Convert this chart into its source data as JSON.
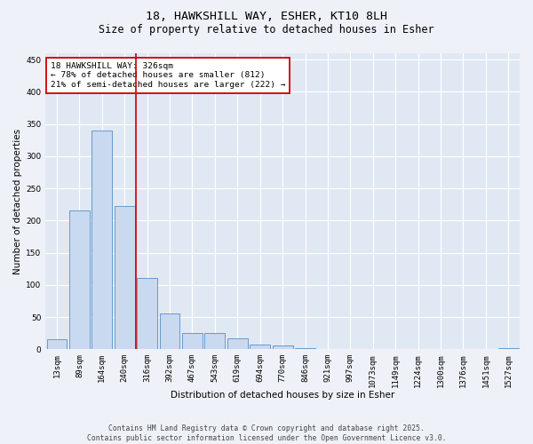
{
  "title_line1": "18, HAWKSHILL WAY, ESHER, KT10 8LH",
  "title_line2": "Size of property relative to detached houses in Esher",
  "xlabel": "Distribution of detached houses by size in Esher",
  "ylabel": "Number of detached properties",
  "categories": [
    "13sqm",
    "89sqm",
    "164sqm",
    "240sqm",
    "316sqm",
    "392sqm",
    "467sqm",
    "543sqm",
    "619sqm",
    "694sqm",
    "770sqm",
    "846sqm",
    "921sqm",
    "997sqm",
    "1073sqm",
    "1149sqm",
    "1224sqm",
    "1300sqm",
    "1376sqm",
    "1451sqm",
    "1527sqm"
  ],
  "values": [
    15,
    216,
    340,
    222,
    111,
    55,
    25,
    25,
    17,
    8,
    6,
    2,
    1,
    1,
    1,
    0,
    0,
    0,
    0,
    0,
    2
  ],
  "bar_color": "#c8d9f0",
  "bar_edge_color": "#5590c8",
  "vline_x_index": 4,
  "vline_color": "#cc0000",
  "annotation_text": "18 HAWKSHILL WAY: 326sqm\n← 78% of detached houses are smaller (812)\n21% of semi-detached houses are larger (222) →",
  "annotation_box_color": "#ffffff",
  "annotation_box_edge_color": "#cc0000",
  "ylim": [
    0,
    460
  ],
  "yticks": [
    0,
    50,
    100,
    150,
    200,
    250,
    300,
    350,
    400,
    450
  ],
  "fig_background_color": "#eef2f8",
  "background_color": "#e0e8f4",
  "grid_color": "#ffffff",
  "footer_text": "Contains HM Land Registry data © Crown copyright and database right 2025.\nContains public sector information licensed under the Open Government Licence v3.0.",
  "title_fontsize": 9.5,
  "subtitle_fontsize": 8.5,
  "axis_fontsize": 7.5,
  "tick_fontsize": 6.5,
  "annotation_fontsize": 6.8,
  "footer_fontsize": 5.8
}
